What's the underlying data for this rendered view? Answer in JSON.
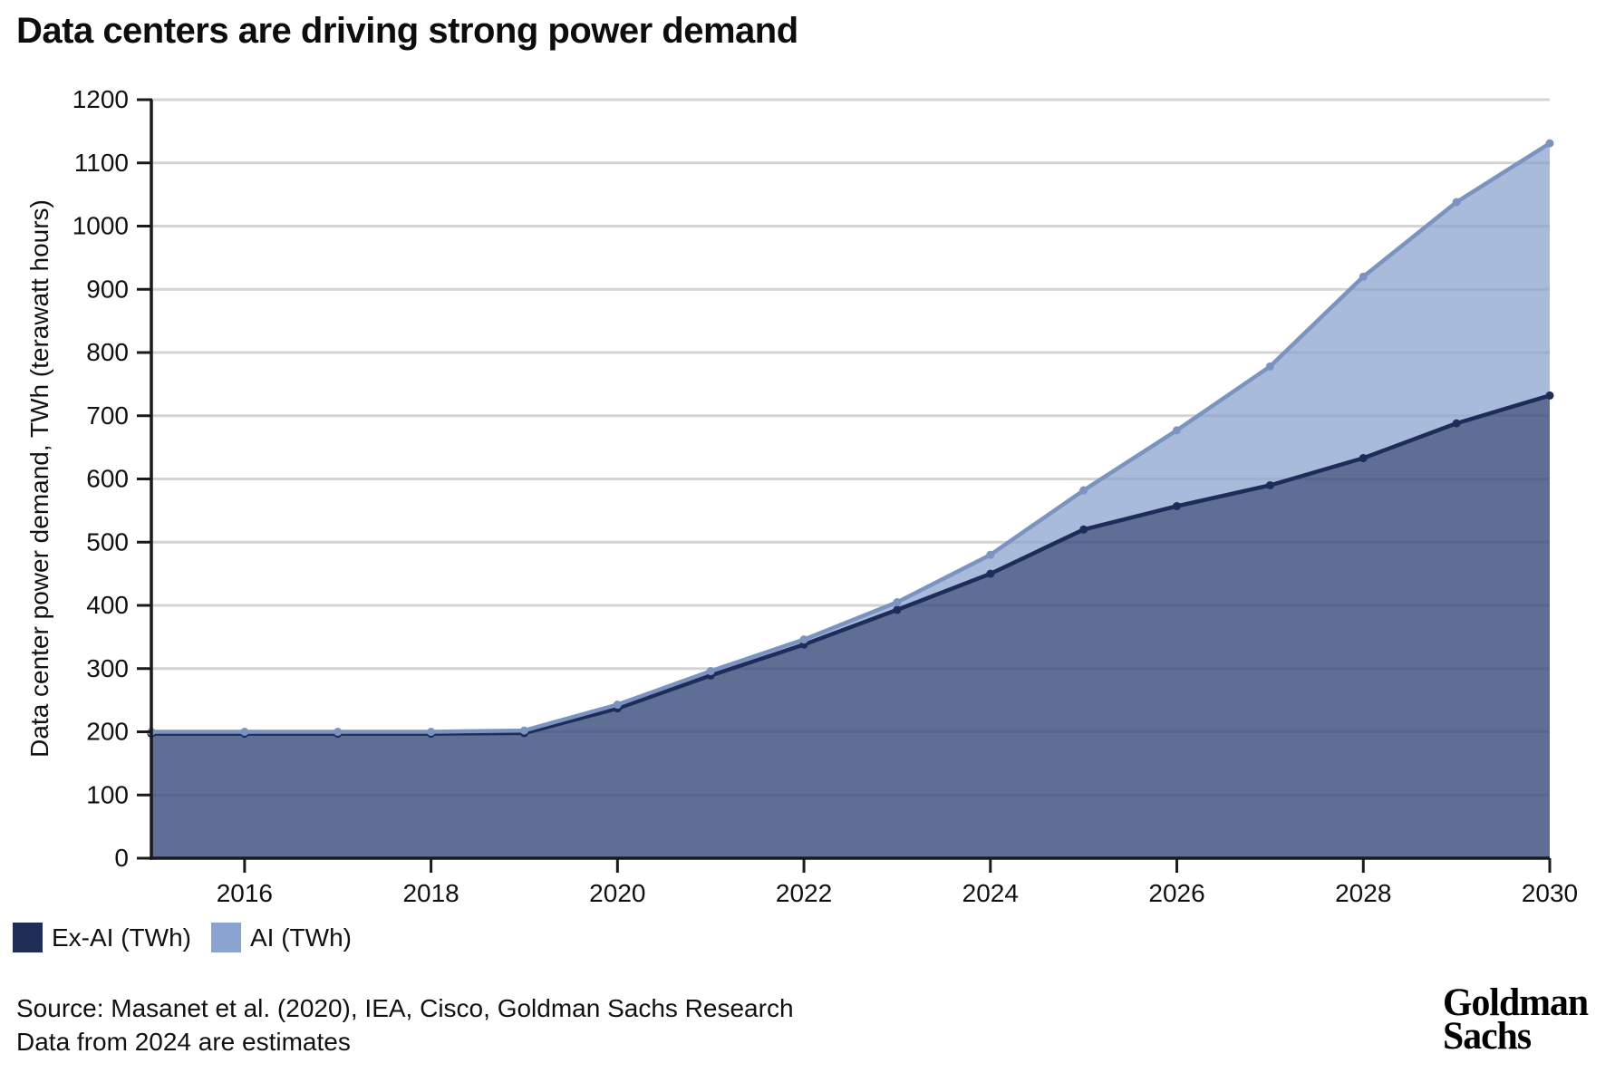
{
  "title": "Data centers are driving strong power demand",
  "chart_data": {
    "type": "area",
    "stacked": true,
    "x": [
      2015,
      2016,
      2017,
      2018,
      2019,
      2020,
      2021,
      2022,
      2023,
      2024,
      2025,
      2026,
      2027,
      2028,
      2029,
      2030
    ],
    "series": [
      {
        "name": "Ex-AI (TWh)",
        "values": [
          197,
          197,
          197,
          197,
          198,
          237,
          289,
          338,
          393,
          450,
          520,
          557,
          590,
          633,
          688,
          732
        ],
        "line_color": "#1e2c5a",
        "fill_color": "rgba(54,74,123,0.80)",
        "swatch_color": "#1f2d55"
      },
      {
        "name": "AI (TWh)",
        "values": [
          3,
          3,
          3,
          3,
          4,
          6,
          7,
          8,
          12,
          30,
          62,
          120,
          188,
          287,
          350,
          399
        ],
        "line_color": "#7b93c1",
        "fill_color": "rgba(138,163,207,0.74)",
        "swatch_color": "#8aa3cf"
      }
    ],
    "stacked_totals": [
      200,
      200,
      200,
      200,
      202,
      243,
      296,
      346,
      405,
      480,
      582,
      677,
      778,
      920,
      1038,
      1131
    ],
    "title": "Data centers are driving strong power demand",
    "xlabel": "",
    "ylabel": "Data center power demand, TWh (terawatt hours)",
    "ylim": [
      0,
      1200
    ],
    "ytick_step": 100,
    "xticks": [
      2016,
      2018,
      2020,
      2022,
      2024,
      2026,
      2028,
      2030
    ],
    "grid": true,
    "grid_color": "#d4d4d4",
    "axis_color": "#1a1a1a",
    "legend_position": "bottom-left"
  },
  "legend": {
    "items": [
      {
        "label": "Ex-AI (TWh)"
      },
      {
        "label": "AI (TWh)"
      }
    ]
  },
  "source": {
    "line1": "Source: Masanet et al. (2020), IEA, Cisco, Goldman Sachs Research",
    "line2": "Data from 2024 are estimates"
  },
  "logo": {
    "line1": "Goldman",
    "line2": "Sachs"
  }
}
